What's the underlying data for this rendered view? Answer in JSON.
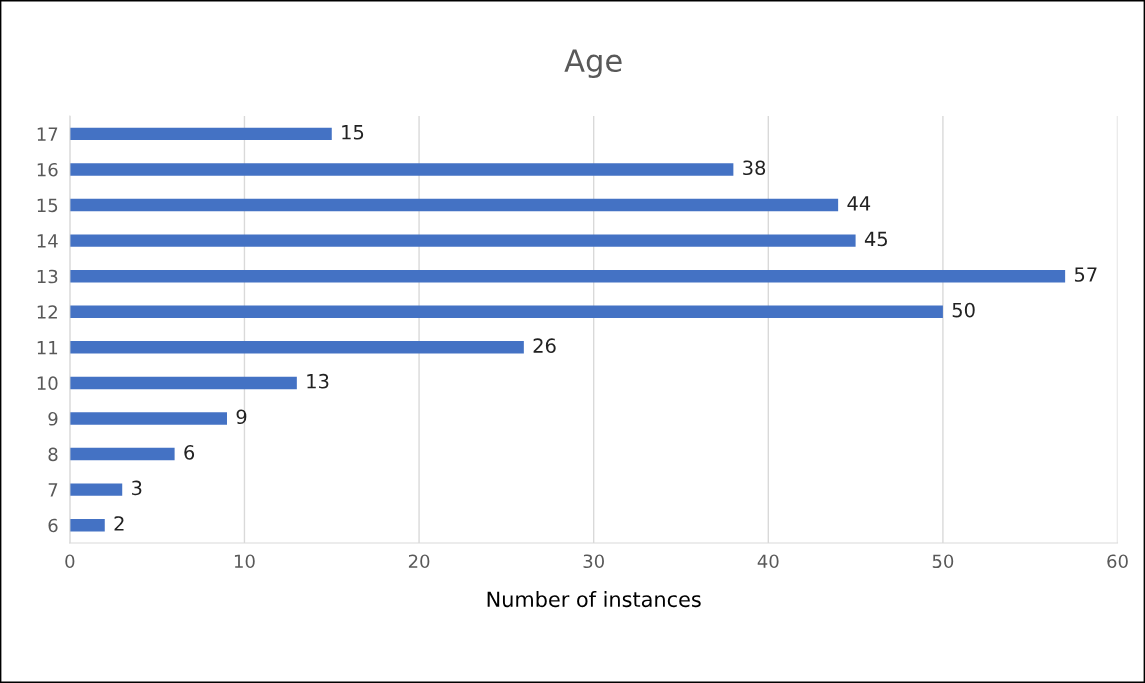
{
  "chart_data": {
    "type": "bar",
    "orientation": "horizontal",
    "title": "Age",
    "xlabel": "Number of instances",
    "categories": [
      "17",
      "16",
      "15",
      "14",
      "13",
      "12",
      "11",
      "10",
      "9",
      "8",
      "7",
      "6"
    ],
    "values": [
      15,
      38,
      44,
      45,
      57,
      50,
      26,
      13,
      9,
      6,
      3,
      2
    ],
    "color": "#4472c4",
    "xlim": [
      0,
      60
    ],
    "xticks": [
      0,
      10,
      20,
      30,
      40,
      50,
      60
    ],
    "grid": "x",
    "data_labels": true,
    "legend": false
  }
}
